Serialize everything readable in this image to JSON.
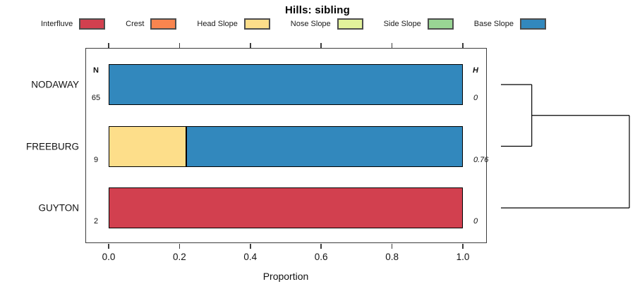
{
  "chart_data": {
    "type": "bar",
    "orientation": "horizontal",
    "stacked": true,
    "title": "Hills: sibling",
    "xlabel": "Proportion",
    "xlim": [
      0,
      1
    ],
    "x_ticks": [
      0.0,
      0.2,
      0.4,
      0.6,
      0.8,
      1.0
    ],
    "x_tick_labels": [
      "0.0",
      "0.2",
      "0.4",
      "0.6",
      "0.8",
      "1.0"
    ],
    "grid": false,
    "legend_position": "top",
    "categories": [
      "NODAWAY",
      "FREEBURG",
      "GUYTON"
    ],
    "legend": [
      {
        "label": "Interfluve",
        "color": "#D2404F"
      },
      {
        "label": "Crest",
        "color": "#F9854F"
      },
      {
        "label": "Head Slope",
        "color": "#FDDE8A"
      },
      {
        "label": "Nose Slope",
        "color": "#E2F29B"
      },
      {
        "label": "Side Slope",
        "color": "#99D594"
      },
      {
        "label": "Base Slope",
        "color": "#3288BD"
      }
    ],
    "series": [
      {
        "name": "Interfluve",
        "values": [
          0,
          0,
          1.0
        ]
      },
      {
        "name": "Crest",
        "values": [
          0,
          0,
          0
        ]
      },
      {
        "name": "Head Slope",
        "values": [
          0,
          0.22,
          0
        ]
      },
      {
        "name": "Nose Slope",
        "values": [
          0,
          0,
          0
        ]
      },
      {
        "name": "Side Slope",
        "values": [
          0,
          0,
          0
        ]
      },
      {
        "name": "Base Slope",
        "values": [
          1.0,
          0.78,
          0
        ]
      }
    ],
    "columns": {
      "n_header": "N",
      "h_header": "H",
      "n_values": [
        "65",
        "9",
        "2"
      ],
      "h_values": [
        "0",
        "0.76",
        "0"
      ]
    },
    "dendrogram": {
      "leaves": [
        "NODAWAY",
        "FREEBURG",
        "GUYTON"
      ],
      "merges": [
        {
          "members": [
            0,
            1
          ],
          "height": 0.24
        },
        {
          "members": [
            "m0",
            2
          ],
          "height": 1.0
        }
      ]
    },
    "colors": {
      "axis": "#3d3d3d",
      "bar_border": "#000000",
      "dendro_line": "#000000"
    }
  }
}
